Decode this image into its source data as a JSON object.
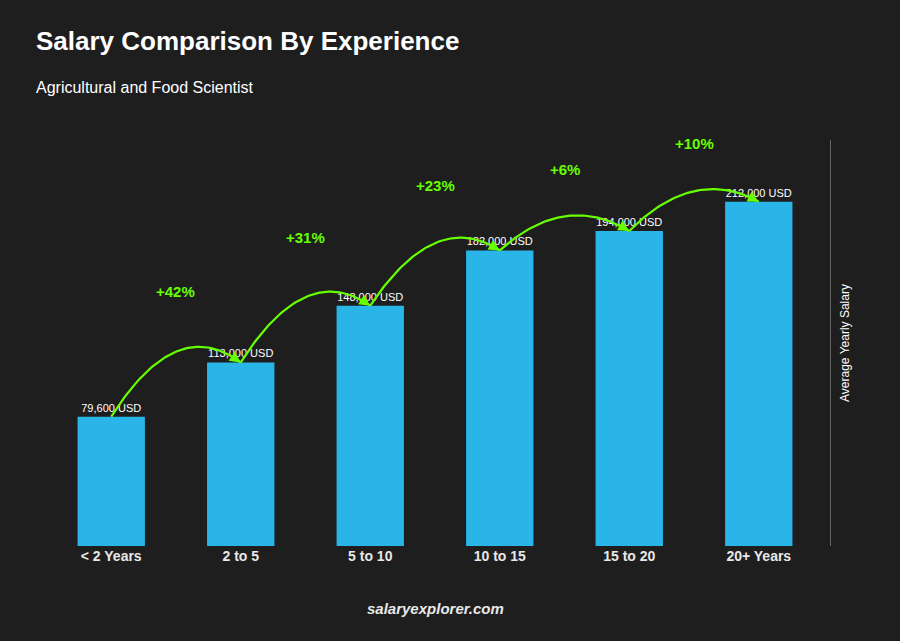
{
  "chart_data": {
    "type": "bar",
    "title": "Salary Comparison By Experience",
    "subtitle": "Agricultural and Food Scientist",
    "y_label": "Average Yearly Salary",
    "categories": [
      "< 2 Years",
      "2 to 5",
      "5 to 10",
      "10 to 15",
      "15 to 20",
      "20+ Years"
    ],
    "values": [
      79600,
      113000,
      148000,
      182000,
      194000,
      212000
    ],
    "value_labels": [
      "79,600 USD",
      "113,000 USD",
      "148,000 USD",
      "182,000 USD",
      "194,000 USD",
      "212,000 USD"
    ],
    "data_labels": true,
    "color": "#29b5e8",
    "ylim": [
      0,
      250000
    ],
    "tick_labels": "x",
    "grid": false,
    "annotations": [
      {
        "text": "+42%",
        "color": "#66ff00"
      },
      {
        "text": "+31%",
        "color": "#66ff00"
      },
      {
        "text": "+23%",
        "color": "#66ff00"
      },
      {
        "text": "+6%",
        "color": "#66ff00"
      },
      {
        "text": "+10%",
        "color": "#66ff00"
      }
    ],
    "footer": "salaryexplorer.com"
  }
}
